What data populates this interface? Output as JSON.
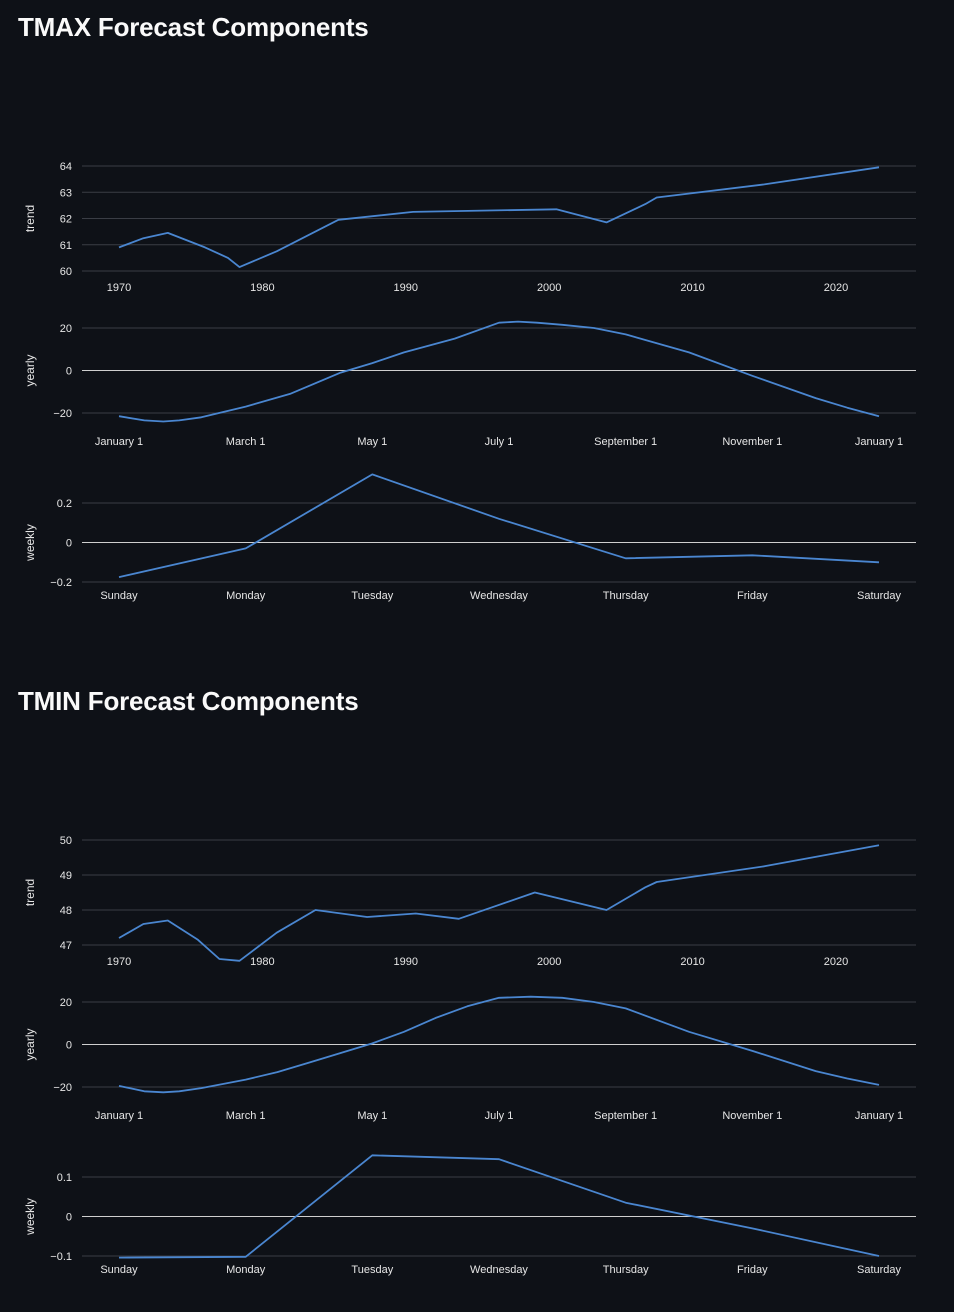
{
  "sections": [
    {
      "title": "TMAX Forecast Components"
    },
    {
      "title": "TMIN Forecast Components"
    }
  ],
  "colors": {
    "background": "#0e1117",
    "line": "#4a86d0",
    "grid": "#3a3d45",
    "zero_line": "#cfcfcf"
  },
  "chart_data": [
    {
      "type": "line",
      "id": "tmax-trend",
      "ylabel": "trend",
      "x_ticks": [
        1970,
        1980,
        1990,
        2000,
        2010,
        2020
      ],
      "y_ticks": [
        60,
        61,
        62,
        63,
        64
      ],
      "xlim": [
        1970,
        2023
      ],
      "ylim": [
        60,
        64
      ],
      "grid": true,
      "x": [
        1970,
        1971.7,
        1973.4,
        1976,
        1977.6,
        1978.4,
        1981,
        1985.3,
        1990.5,
        2000.5,
        2004,
        2006.7,
        2007.5,
        2015,
        2023
      ],
      "y": [
        60.9,
        61.25,
        61.45,
        60.9,
        60.5,
        60.15,
        60.75,
        61.95,
        62.25,
        62.35,
        61.85,
        62.55,
        62.8,
        63.3,
        63.95
      ]
    },
    {
      "type": "line",
      "id": "tmax-yearly",
      "ylabel": "yearly",
      "x_ticks": [
        "January 1",
        "March 1",
        "May 1",
        "July 1",
        "September 1",
        "November 1",
        "January 1"
      ],
      "y_ticks": [
        -20,
        0,
        20
      ],
      "xlim": [
        0,
        12
      ],
      "ylim": [
        -20,
        20
      ],
      "grid": true,
      "x": [
        0,
        0.4,
        0.7,
        0.95,
        1.3,
        2,
        2.7,
        3.5,
        4,
        4.5,
        5.3,
        6,
        6.3,
        6.6,
        7,
        7.5,
        8,
        9,
        10,
        11,
        11.5,
        12
      ],
      "y": [
        -21.5,
        -23.5,
        -24,
        -23.5,
        -22,
        -17,
        -11,
        -1,
        3.5,
        8.5,
        15,
        22.5,
        23,
        22.5,
        21.5,
        20,
        17,
        8.5,
        -2.5,
        -13,
        -17.5,
        -21.5
      ]
    },
    {
      "type": "line",
      "id": "tmax-weekly",
      "ylabel": "weekly",
      "x_ticks": [
        "Sunday",
        "Monday",
        "Tuesday",
        "Wednesday",
        "Thursday",
        "Friday",
        "Saturday"
      ],
      "y_ticks": [
        -0.2,
        0,
        0.2
      ],
      "xlim": [
        0,
        6
      ],
      "ylim": [
        -0.2,
        0.2
      ],
      "grid": true,
      "x": [
        0,
        1,
        2,
        3,
        4,
        5,
        6
      ],
      "y": [
        -0.175,
        -0.03,
        0.345,
        0.12,
        -0.08,
        -0.065,
        -0.1
      ]
    },
    {
      "type": "line",
      "id": "tmin-trend",
      "ylabel": "trend",
      "x_ticks": [
        1970,
        1980,
        1990,
        2000,
        2010,
        2020
      ],
      "y_ticks": [
        47,
        48,
        49,
        50
      ],
      "xlim": [
        1970,
        2023
      ],
      "ylim": [
        47,
        50
      ],
      "grid": true,
      "x": [
        1970,
        1971.7,
        1973.4,
        1975.5,
        1977,
        1978.4,
        1981,
        1983.7,
        1987.3,
        1990.7,
        1993.7,
        1999,
        2004,
        2006.7,
        2007.5,
        2015,
        2023
      ],
      "y": [
        47.2,
        47.6,
        47.7,
        47.15,
        46.6,
        46.55,
        47.35,
        48,
        47.8,
        47.9,
        47.75,
        48.5,
        48,
        48.65,
        48.8,
        49.25,
        49.85
      ]
    },
    {
      "type": "line",
      "id": "tmin-yearly",
      "ylabel": "yearly",
      "x_ticks": [
        "January 1",
        "March 1",
        "May 1",
        "July 1",
        "September 1",
        "November 1",
        "January 1"
      ],
      "y_ticks": [
        -20,
        0,
        20
      ],
      "xlim": [
        0,
        12
      ],
      "ylim": [
        -20,
        20
      ],
      "grid": true,
      "x": [
        0,
        0.4,
        0.7,
        0.95,
        1.3,
        2,
        2.5,
        3,
        3.5,
        4,
        4.5,
        5,
        5.5,
        6,
        6.5,
        7,
        7.5,
        8,
        9,
        10,
        11,
        11.5,
        12
      ],
      "y": [
        -19.5,
        -22,
        -22.5,
        -22,
        -20.5,
        -16.5,
        -13,
        -8.5,
        -4,
        0.5,
        6,
        12.5,
        18,
        22,
        22.5,
        22,
        20,
        17,
        6,
        -3,
        -12.5,
        -16,
        -19
      ]
    },
    {
      "type": "line",
      "id": "tmin-weekly",
      "ylabel": "weekly",
      "x_ticks": [
        "Sunday",
        "Monday",
        "Tuesday",
        "Wednesday",
        "Thursday",
        "Friday",
        "Saturday"
      ],
      "y_ticks": [
        -0.1,
        0,
        0.1
      ],
      "xlim": [
        0,
        6
      ],
      "ylim": [
        -0.1,
        0.1
      ],
      "grid": true,
      "x": [
        0,
        1,
        2,
        3,
        4,
        5,
        6
      ],
      "y": [
        -0.104,
        -0.102,
        0.155,
        0.145,
        0.035,
        -0.03,
        -0.1
      ]
    }
  ]
}
